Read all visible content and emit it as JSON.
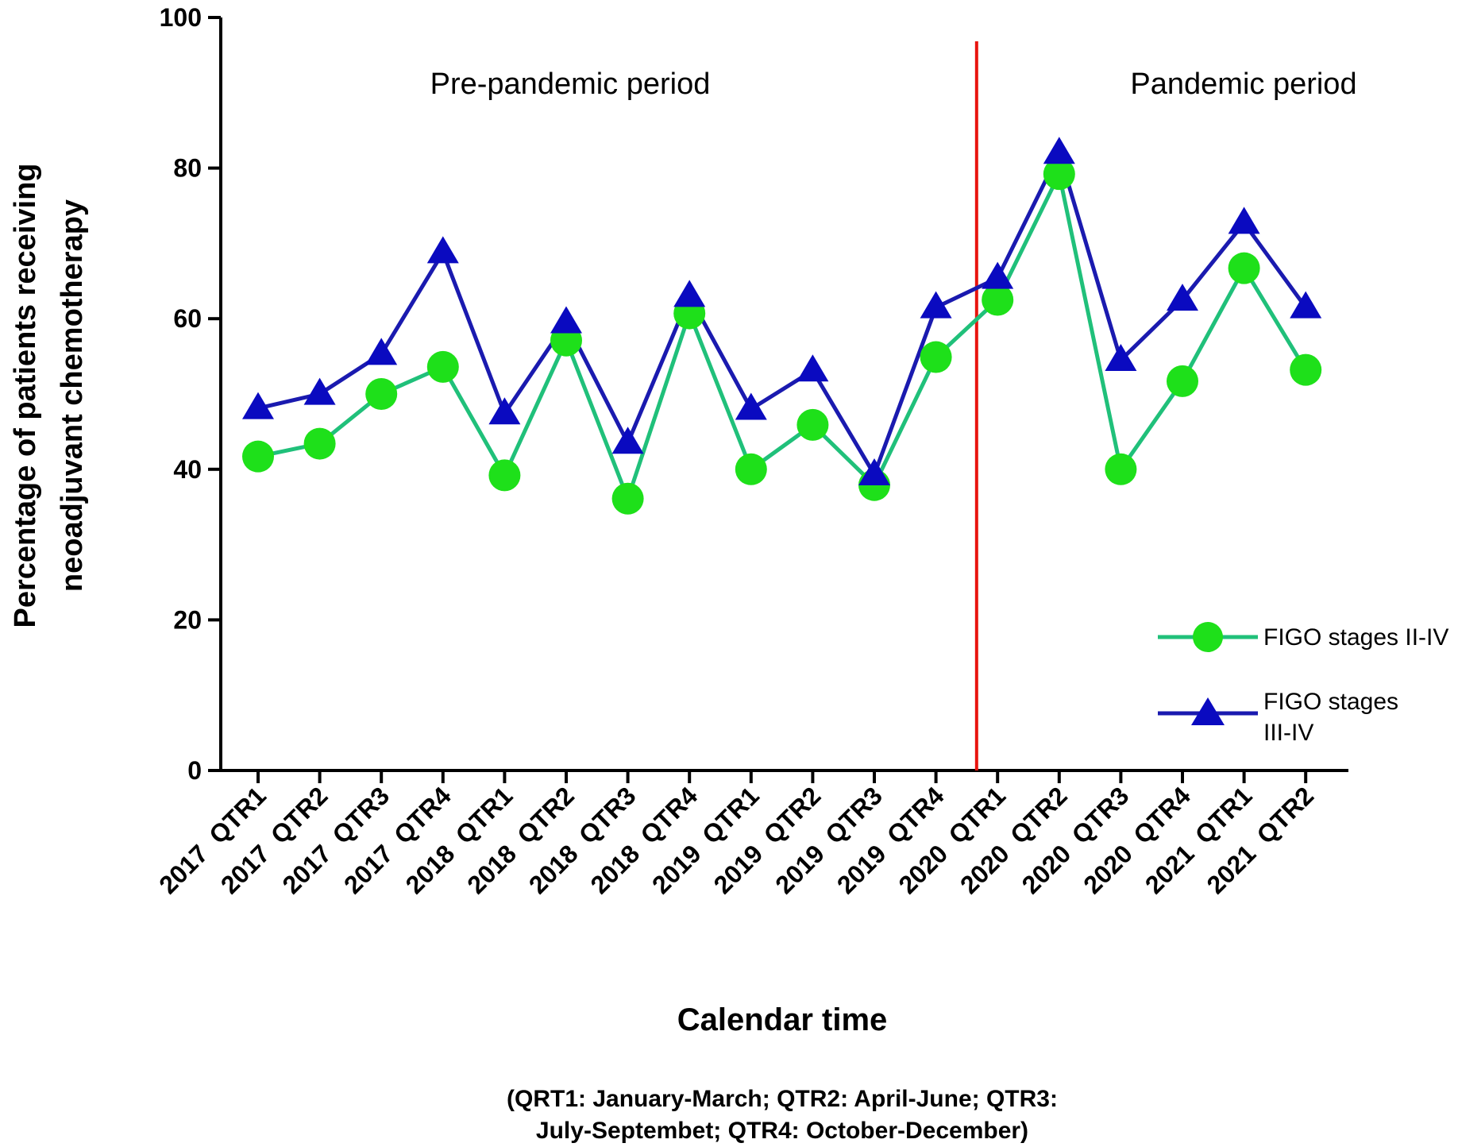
{
  "chart_data": {
    "type": "line",
    "title": "",
    "xlabel": "Calendar time",
    "ylabel_line1": "Percentage of patients receiving",
    "ylabel_line2": "neoadjuvant chemotherapy",
    "ylim": [
      0,
      100
    ],
    "yticks": [
      "0",
      "20",
      "40",
      "60",
      "80",
      "100"
    ],
    "categories": [
      "2017  QTR1",
      "2017  QTR2",
      "2017  QTR3",
      "2017  QTR4",
      "2018  QTR1",
      "2018  QTR2",
      "2018  QTR3",
      "2018  QTR4",
      "2019  QTR1",
      "2019  QTR2",
      "2019  QTR3",
      "2019  QTR4",
      "2020  QTR1",
      "2020  QTR2",
      "2020  QTR3",
      "2020  QTR4",
      "2021  QTR1",
      "2021  QTR2"
    ],
    "series": [
      {
        "name": "FIGO stages II-IV",
        "legend_line1": "FIGO stages II-IV",
        "legend_line2": "",
        "marker": "circle",
        "color": "#20c07a",
        "marker_color": "#1ee01a",
        "values": [
          41.7,
          43.4,
          50.0,
          53.6,
          39.2,
          57.1,
          36.1,
          60.7,
          40.0,
          45.9,
          37.9,
          54.9,
          62.5,
          79.2,
          40.0,
          51.7,
          66.7,
          53.2
        ]
      },
      {
        "name": "FIGO stages III-IV",
        "legend_line1": "FIGO stages",
        "legend_line2": "III-IV",
        "marker": "triangle",
        "color": "#1a1aaf",
        "marker_color": "#0a0ac0",
        "values": [
          48.1,
          50.0,
          55.3,
          68.8,
          47.4,
          59.5,
          43.5,
          63.0,
          48.0,
          53.1,
          39.3,
          61.5,
          65.4,
          82.0,
          54.5,
          62.5,
          72.7,
          61.5
        ]
      }
    ],
    "divider": {
      "after_category": "2019  QTR4",
      "color": "#e8140e"
    },
    "period_labels": [
      "Pre-pandemic period",
      "Pandemic period"
    ],
    "footnote_line1": "(QRT1: January-March; QTR2: April-June; QTR3:",
    "footnote_line2": "July-Septembet; QTR4: October-December)"
  }
}
